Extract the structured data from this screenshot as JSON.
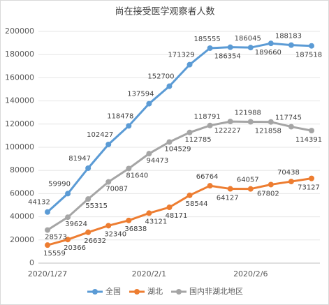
{
  "chart_data": {
    "type": "line",
    "title": "尚在接受医学观察者人数",
    "categories": [
      "2020/1/27",
      null,
      null,
      null,
      null,
      "2020/2/1",
      null,
      null,
      null,
      null,
      "2020/2/6",
      null,
      null,
      null
    ],
    "series": [
      {
        "name": "全国",
        "color": "#5b9bd5",
        "values": [
          44132,
          59990,
          81947,
          102427,
          118478,
          137594,
          152700,
          171329,
          185555,
          186354,
          186045,
          189660,
          188183,
          187518
        ]
      },
      {
        "name": "湖北",
        "color": "#ed7d31",
        "values": [
          15559,
          20366,
          26632,
          32340,
          36838,
          43121,
          48171,
          58544,
          66764,
          64127,
          64057,
          67802,
          70438,
          73127
        ]
      },
      {
        "name": "国内非湖北地区",
        "color": "#a5a5a5",
        "values": [
          28573,
          39624,
          55315,
          70087,
          81640,
          94473,
          104529,
          112785,
          118791,
          122227,
          121988,
          121858,
          117745,
          114391
        ]
      }
    ],
    "ylim": [
      0,
      200000
    ],
    "yticks": [
      0,
      20000,
      40000,
      60000,
      80000,
      100000,
      120000,
      140000,
      160000,
      180000,
      200000
    ],
    "grid": true,
    "legend": "bottom"
  }
}
